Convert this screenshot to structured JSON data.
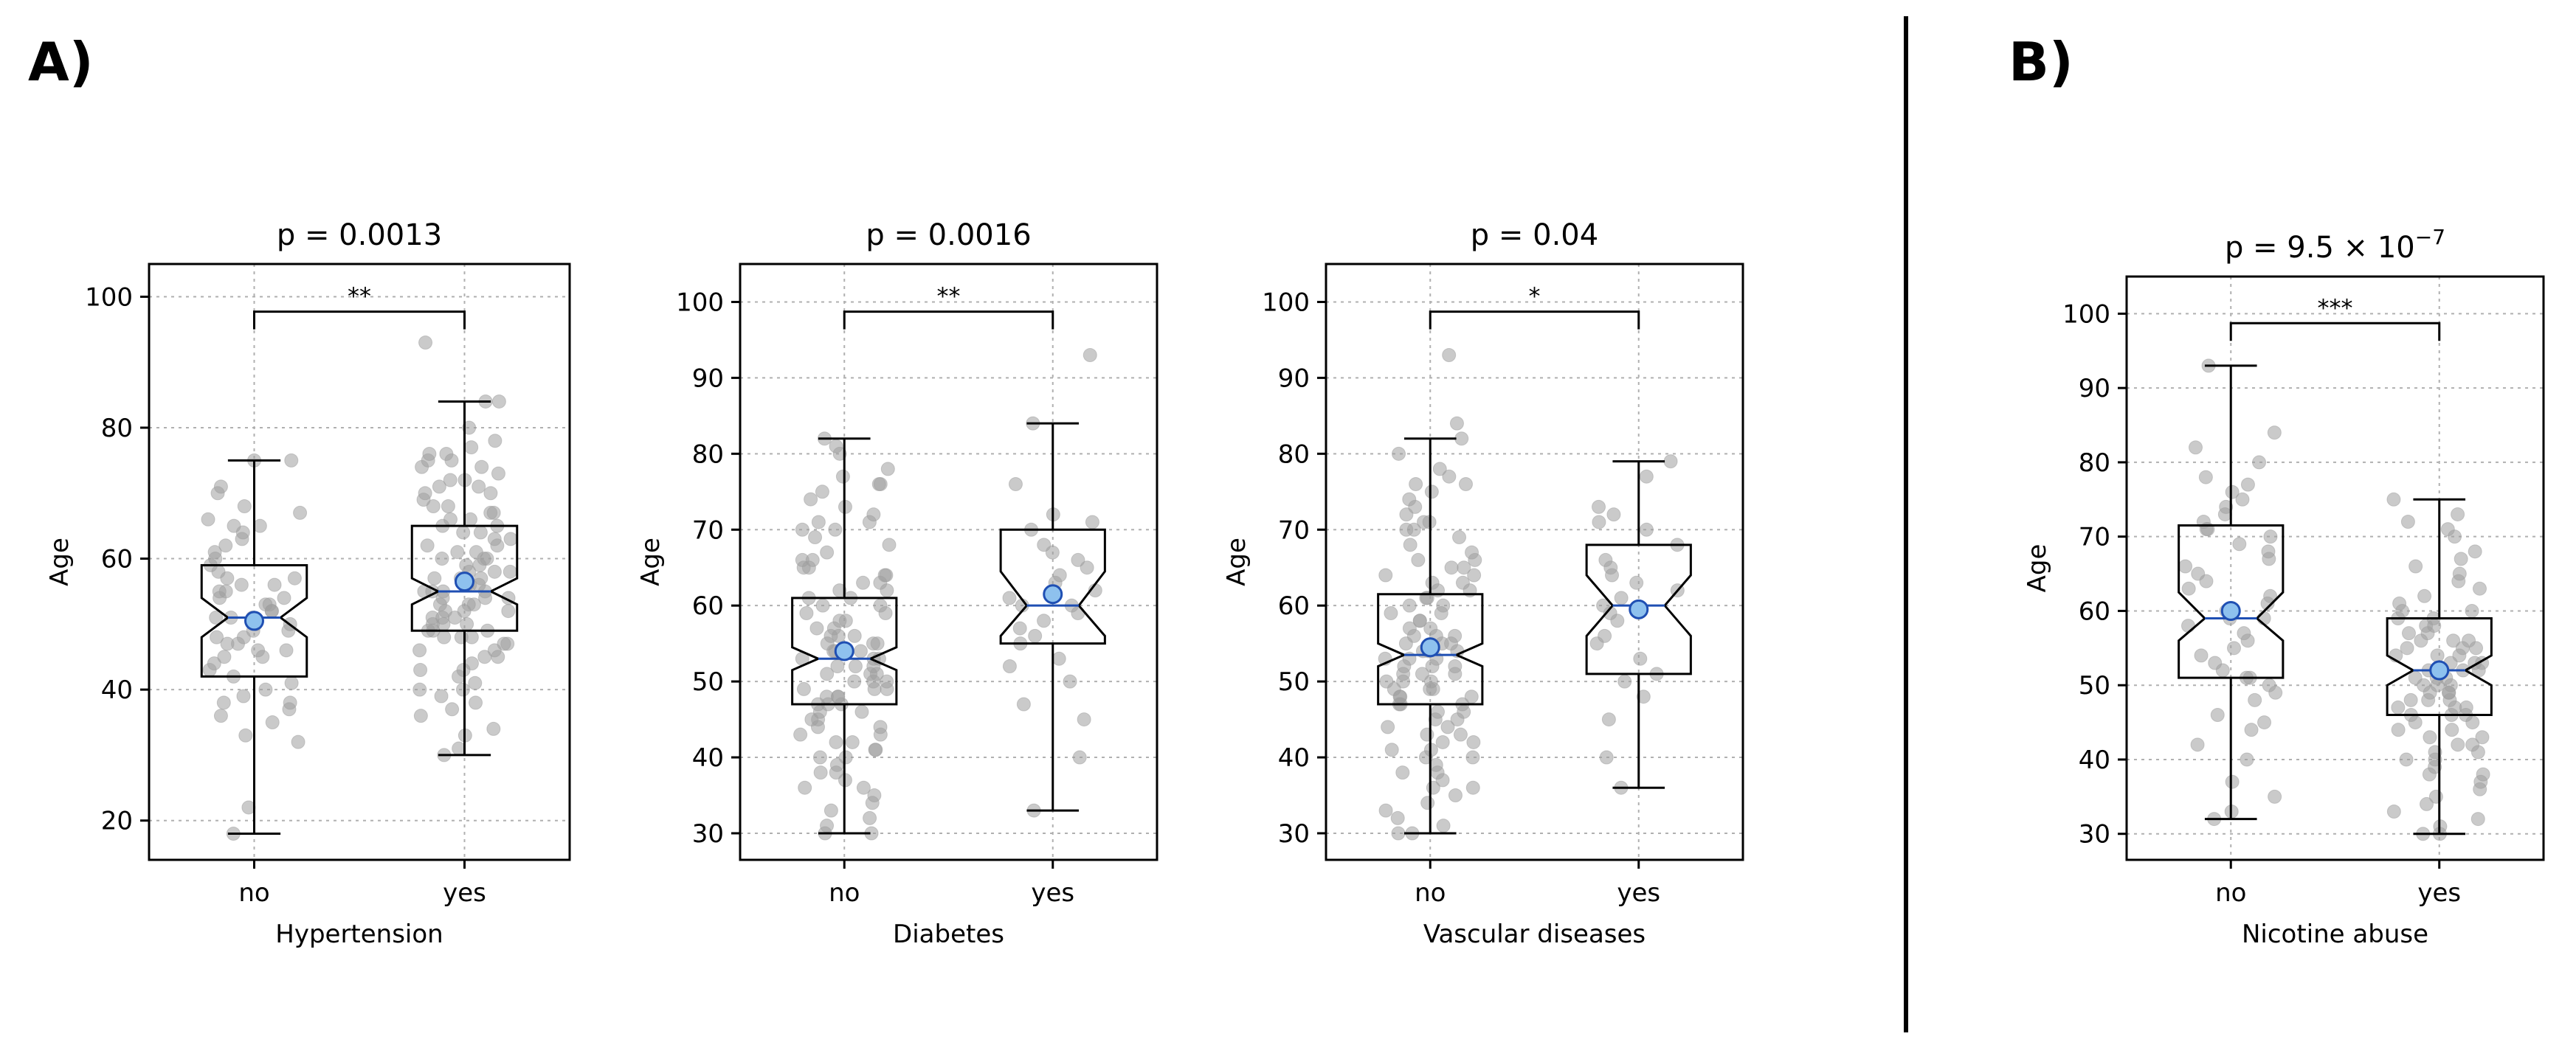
{
  "panel_labels": [
    "A)",
    "B)"
  ],
  "colors": {
    "jitter": "#9e9e9e",
    "mean_fill": "#8ec1ee",
    "mean_stroke": "#1f4fb3",
    "median": "#1f4fb3",
    "grid": "#b0b0b0"
  },
  "chart_data": [
    {
      "type": "box",
      "title": "p = 0.0013",
      "xlabel": "Hypertension",
      "ylabel": "Age",
      "categories": [
        "no",
        "yes"
      ],
      "ylim": [
        14,
        105
      ],
      "yticks": [
        20,
        40,
        60,
        80,
        100
      ],
      "significance": "**",
      "boxes": [
        {
          "name": "no",
          "whisker_low": 18,
          "q1": 42,
          "median": 51,
          "q3": 59,
          "whisker_high": 75,
          "mean": 50.5,
          "notch": [
            48,
            54
          ]
        },
        {
          "name": "yes",
          "whisker_low": 30,
          "q1": 49,
          "median": 55,
          "q3": 65,
          "whisker_high": 84,
          "mean": 56.5,
          "notch": [
            53,
            57
          ]
        }
      ],
      "points": [
        {
          "group": 0,
          "values": [
            18,
            22,
            32,
            33,
            35,
            36,
            37,
            38,
            38,
            39,
            40,
            41,
            42,
            43,
            44,
            45,
            45,
            46,
            46,
            47,
            47,
            48,
            48,
            49,
            49,
            50,
            50,
            51,
            51,
            51,
            52,
            52,
            53,
            53,
            54,
            54,
            55,
            55,
            56,
            56,
            57,
            57,
            58,
            59,
            60,
            61,
            62,
            63,
            64,
            65,
            65,
            66,
            67,
            68,
            70,
            71,
            75,
            75
          ]
        },
        {
          "group": 1,
          "values": [
            30,
            31,
            33,
            34,
            36,
            37,
            38,
            39,
            40,
            40,
            41,
            42,
            43,
            43,
            44,
            45,
            45,
            46,
            46,
            47,
            47,
            48,
            48,
            48,
            49,
            49,
            49,
            50,
            50,
            50,
            51,
            51,
            51,
            52,
            52,
            52,
            53,
            53,
            53,
            54,
            54,
            54,
            55,
            55,
            55,
            55,
            56,
            56,
            56,
            57,
            57,
            57,
            58,
            58,
            58,
            59,
            59,
            60,
            60,
            60,
            61,
            61,
            62,
            62,
            63,
            63,
            64,
            64,
            65,
            65,
            66,
            66,
            67,
            67,
            68,
            68,
            69,
            70,
            70,
            71,
            71,
            72,
            72,
            73,
            74,
            74,
            75,
            75,
            76,
            76,
            77,
            78,
            80,
            84,
            84,
            93
          ]
        }
      ]
    },
    {
      "type": "box",
      "title": "p = 0.0016",
      "xlabel": "Diabetes",
      "ylabel": "Age",
      "categories": [
        "no",
        "yes"
      ],
      "ylim": [
        26.5,
        105
      ],
      "yticks": [
        30,
        40,
        50,
        60,
        70,
        80,
        90,
        100
      ],
      "significance": "**",
      "boxes": [
        {
          "name": "no",
          "whisker_low": 30,
          "q1": 47,
          "median": 53,
          "q3": 61,
          "whisker_high": 82,
          "mean": 54,
          "notch": [
            51.5,
            54.5
          ]
        },
        {
          "name": "yes",
          "whisker_low": 33,
          "q1": 55,
          "median": 60,
          "q3": 70,
          "whisker_high": 84,
          "mean": 61.5,
          "notch": [
            56,
            64.5
          ]
        }
      ],
      "points": [
        {
          "group": 0,
          "values": [
            30,
            30,
            31,
            32,
            33,
            34,
            35,
            36,
            36,
            37,
            38,
            38,
            39,
            40,
            40,
            41,
            41,
            42,
            42,
            43,
            43,
            44,
            44,
            45,
            45,
            46,
            46,
            47,
            47,
            47,
            48,
            48,
            48,
            49,
            49,
            49,
            50,
            50,
            50,
            51,
            51,
            51,
            52,
            52,
            52,
            53,
            53,
            53,
            54,
            54,
            54,
            55,
            55,
            55,
            56,
            56,
            56,
            57,
            57,
            58,
            58,
            59,
            59,
            60,
            60,
            61,
            61,
            62,
            62,
            63,
            63,
            64,
            64,
            65,
            65,
            66,
            66,
            67,
            68,
            69,
            70,
            70,
            71,
            71,
            72,
            73,
            74,
            75,
            76,
            76,
            77,
            78,
            80,
            81,
            82
          ]
        },
        {
          "group": 1,
          "values": [
            33,
            40,
            45,
            47,
            50,
            52,
            53,
            55,
            56,
            57,
            58,
            59,
            60,
            60,
            61,
            62,
            63,
            64,
            65,
            66,
            67,
            68,
            70,
            71,
            72,
            76,
            84,
            93
          ]
        }
      ]
    },
    {
      "type": "box",
      "title": "p = 0.04",
      "xlabel": "Vascular diseases",
      "ylabel": "Age",
      "categories": [
        "no",
        "yes"
      ],
      "ylim": [
        26.5,
        105
      ],
      "yticks": [
        30,
        40,
        50,
        60,
        70,
        80,
        90,
        100
      ],
      "significance": "*",
      "boxes": [
        {
          "name": "no",
          "whisker_low": 30,
          "q1": 47,
          "median": 53.5,
          "q3": 61.5,
          "whisker_high": 82,
          "mean": 54.5,
          "notch": [
            52,
            55
          ]
        },
        {
          "name": "yes",
          "whisker_low": 36,
          "q1": 51,
          "median": 60,
          "q3": 68,
          "whisker_high": 79,
          "mean": 59.5,
          "notch": [
            56,
            64
          ]
        }
      ],
      "points": [
        {
          "group": 0,
          "values": [
            30,
            30,
            31,
            32,
            33,
            34,
            35,
            36,
            36,
            37,
            38,
            38,
            39,
            40,
            40,
            41,
            41,
            42,
            42,
            43,
            43,
            44,
            44,
            45,
            45,
            46,
            46,
            47,
            47,
            47,
            48,
            48,
            48,
            49,
            49,
            49,
            50,
            50,
            50,
            51,
            51,
            51,
            52,
            52,
            52,
            53,
            53,
            53,
            54,
            54,
            54,
            55,
            55,
            55,
            56,
            56,
            56,
            57,
            57,
            58,
            58,
            59,
            59,
            60,
            60,
            61,
            61,
            62,
            62,
            63,
            63,
            64,
            64,
            65,
            65,
            66,
            66,
            67,
            68,
            69,
            70,
            70,
            71,
            71,
            72,
            73,
            74,
            75,
            76,
            76,
            77,
            78,
            80,
            82,
            84,
            93
          ]
        },
        {
          "group": 1,
          "values": [
            36,
            40,
            45,
            48,
            50,
            51,
            53,
            55,
            56,
            58,
            59,
            60,
            61,
            62,
            63,
            64,
            65,
            66,
            68,
            70,
            71,
            72,
            73,
            77,
            79
          ]
        }
      ]
    },
    {
      "type": "box",
      "title": "p = 9.5 × 10",
      "title_exponent": "−7",
      "xlabel": "Nicotine abuse",
      "ylabel": "Age",
      "categories": [
        "no",
        "yes"
      ],
      "ylim": [
        26.5,
        105
      ],
      "yticks": [
        30,
        40,
        50,
        60,
        70,
        80,
        90,
        100
      ],
      "significance": "***",
      "boxes": [
        {
          "name": "no",
          "whisker_low": 32,
          "q1": 51,
          "median": 59,
          "q3": 71.5,
          "whisker_high": 93,
          "mean": 60,
          "notch": [
            56,
            62.5
          ]
        },
        {
          "name": "yes",
          "whisker_low": 30,
          "q1": 46,
          "median": 52,
          "q3": 59,
          "whisker_high": 75,
          "mean": 52,
          "notch": [
            50,
            54
          ]
        }
      ],
      "points": [
        {
          "group": 0,
          "values": [
            32,
            33,
            35,
            37,
            40,
            42,
            44,
            45,
            46,
            48,
            49,
            50,
            51,
            51,
            52,
            53,
            54,
            55,
            56,
            57,
            58,
            59,
            59,
            60,
            61,
            62,
            63,
            64,
            65,
            66,
            67,
            68,
            69,
            70,
            71,
            71,
            72,
            73,
            74,
            75,
            76,
            77,
            78,
            80,
            82,
            84,
            93
          ]
        },
        {
          "group": 1,
          "values": [
            30,
            30,
            31,
            32,
            33,
            34,
            35,
            36,
            37,
            38,
            38,
            39,
            40,
            40,
            41,
            41,
            42,
            42,
            43,
            43,
            44,
            44,
            45,
            45,
            46,
            46,
            46,
            47,
            47,
            47,
            48,
            48,
            48,
            49,
            49,
            49,
            50,
            50,
            50,
            51,
            51,
            51,
            52,
            52,
            52,
            53,
            53,
            53,
            54,
            54,
            54,
            55,
            55,
            55,
            56,
            56,
            56,
            57,
            57,
            58,
            58,
            59,
            59,
            60,
            60,
            61,
            62,
            63,
            64,
            65,
            66,
            67,
            68,
            70,
            71,
            72,
            73,
            75
          ]
        }
      ]
    }
  ]
}
